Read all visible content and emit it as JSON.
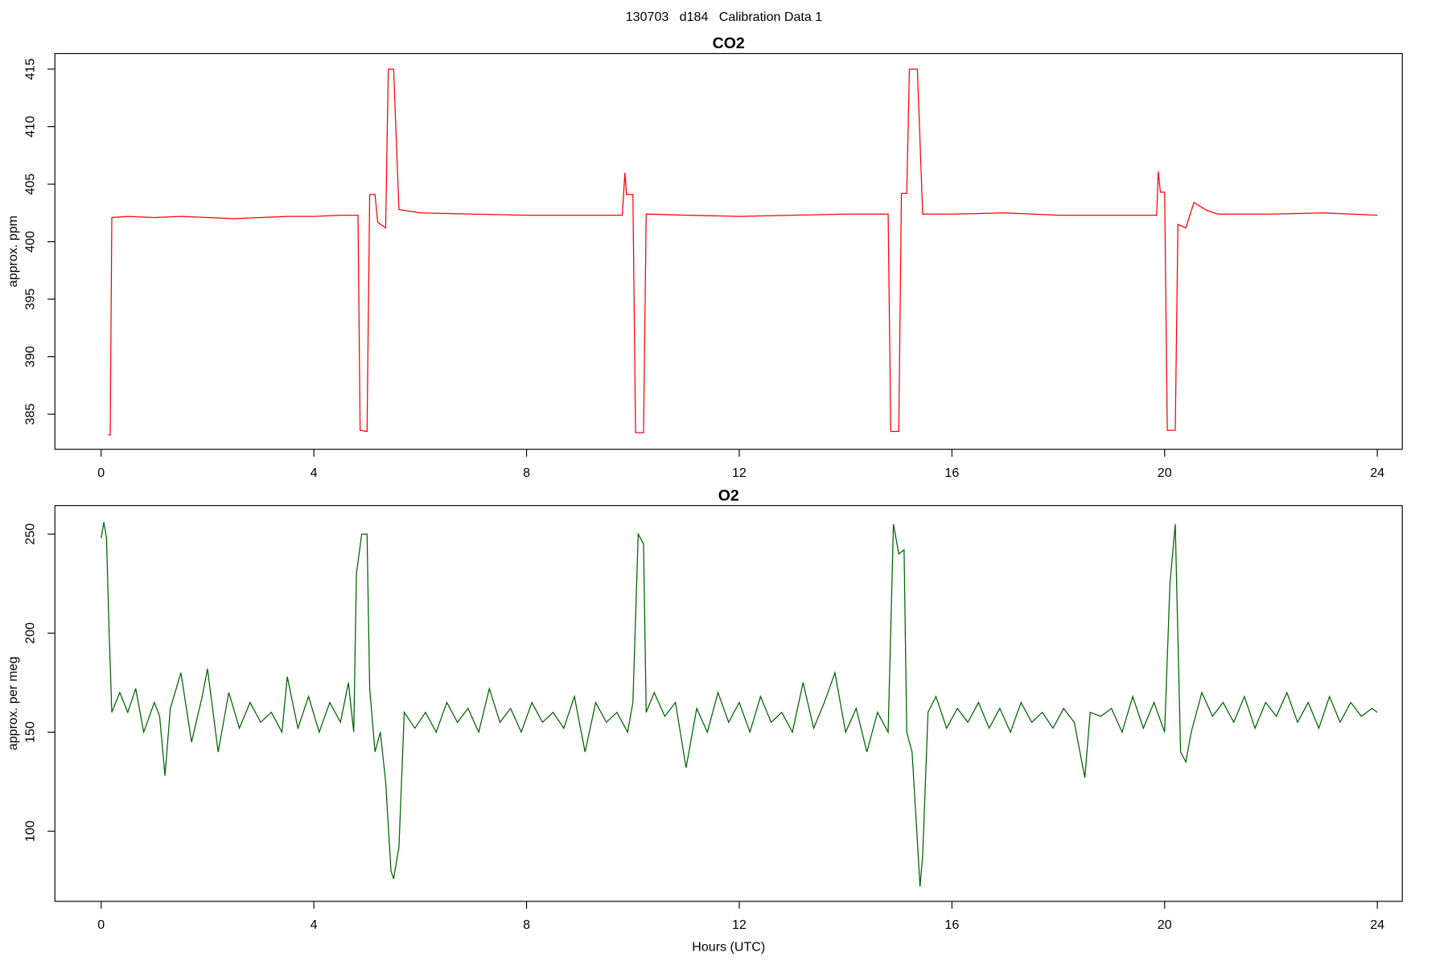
{
  "title": "130703   d184   Calibration Data 1",
  "chart_data": [
    {
      "type": "line",
      "title": "CO2",
      "ylabel": "approx. ppm",
      "color": "#ff0000",
      "xlim": [
        -0.87,
        24.47
      ],
      "xticks": [
        0,
        4,
        8,
        12,
        16,
        20,
        24
      ],
      "ylim": [
        381.95,
        416.36
      ],
      "yticks": [
        385,
        390,
        395,
        400,
        405,
        410,
        415
      ],
      "x": [
        0.13,
        0.17,
        0.2,
        0.5,
        1,
        1.5,
        2,
        2.5,
        3,
        3.5,
        4,
        4.5,
        4.83,
        4.87,
        5.0,
        5.05,
        5.15,
        5.2,
        5.35,
        5.4,
        5.5,
        5.6,
        6,
        7,
        8,
        9,
        9.8,
        9.85,
        9.88,
        10.0,
        10.05,
        10.2,
        10.25,
        11,
        12,
        13,
        14,
        14.8,
        14.85,
        15.0,
        15.05,
        15.15,
        15.2,
        15.35,
        15.45,
        16,
        17,
        18,
        19,
        19.85,
        19.88,
        19.92,
        20.0,
        20.05,
        20.2,
        20.25,
        20.4,
        20.55,
        20.8,
        21,
        22,
        23,
        24
      ],
      "values": [
        383.2,
        383.2,
        402.1,
        402.2,
        402.1,
        402.2,
        402.1,
        402.0,
        402.1,
        402.2,
        402.2,
        402.3,
        402.3,
        383.6,
        383.5,
        404.1,
        404.1,
        401.7,
        401.2,
        415,
        415,
        402.8,
        402.5,
        402.4,
        402.3,
        402.3,
        402.3,
        406,
        404.1,
        404.1,
        383.4,
        383.4,
        402.4,
        402.3,
        402.2,
        402.3,
        402.4,
        402.4,
        383.5,
        383.5,
        404.2,
        404.2,
        415,
        415,
        402.4,
        402.4,
        402.5,
        402.3,
        402.3,
        402.3,
        406.1,
        404.3,
        404.3,
        383.6,
        383.6,
        401.5,
        401.2,
        403.4,
        402.7,
        402.4,
        402.4,
        402.5,
        402.3
      ]
    },
    {
      "type": "line",
      "title": "O2",
      "ylabel": "approx. per meg",
      "xlabel": "Hours (UTC)",
      "color": "#006400",
      "xlim": [
        -0.87,
        24.47
      ],
      "xticks": [
        0,
        4,
        8,
        12,
        16,
        20,
        24
      ],
      "ylim": [
        64.6,
        264.4
      ],
      "yticks": [
        100,
        150,
        200,
        250
      ],
      "x": [
        0,
        0.05,
        0.1,
        0.15,
        0.2,
        0.35,
        0.5,
        0.65,
        0.8,
        1.0,
        1.1,
        1.2,
        1.3,
        1.5,
        1.7,
        1.9,
        2.0,
        2.2,
        2.4,
        2.6,
        2.8,
        3.0,
        3.2,
        3.4,
        3.5,
        3.7,
        3.9,
        4.1,
        4.3,
        4.5,
        4.65,
        4.75,
        4.8,
        4.9,
        5.0,
        5.05,
        5.15,
        5.25,
        5.35,
        5.45,
        5.5,
        5.6,
        5.7,
        5.9,
        6.1,
        6.3,
        6.5,
        6.7,
        6.9,
        7.1,
        7.3,
        7.5,
        7.7,
        7.9,
        8.1,
        8.3,
        8.5,
        8.7,
        8.9,
        9.1,
        9.3,
        9.5,
        9.7,
        9.9,
        10.0,
        10.1,
        10.2,
        10.25,
        10.4,
        10.6,
        10.8,
        11.0,
        11.2,
        11.4,
        11.6,
        11.8,
        12.0,
        12.2,
        12.4,
        12.6,
        12.8,
        13.0,
        13.2,
        13.4,
        13.6,
        13.8,
        14.0,
        14.2,
        14.4,
        14.6,
        14.8,
        14.9,
        15.0,
        15.1,
        15.15,
        15.25,
        15.35,
        15.4,
        15.45,
        15.55,
        15.7,
        15.9,
        16.1,
        16.3,
        16.5,
        16.7,
        16.9,
        17.1,
        17.3,
        17.5,
        17.7,
        17.9,
        18.1,
        18.3,
        18.5,
        18.6,
        18.8,
        19.0,
        19.2,
        19.4,
        19.6,
        19.8,
        20.0,
        20.1,
        20.2,
        20.3,
        20.4,
        20.5,
        20.7,
        20.9,
        21.1,
        21.3,
        21.5,
        21.7,
        21.9,
        22.1,
        22.3,
        22.5,
        22.7,
        22.9,
        23.1,
        23.3,
        23.5,
        23.7,
        23.9,
        24.0
      ],
      "values": [
        248,
        256,
        248,
        200,
        160,
        170,
        160,
        172,
        150,
        165,
        158,
        128,
        162,
        180,
        145,
        168,
        182,
        140,
        170,
        152,
        165,
        155,
        160,
        150,
        178,
        152,
        168,
        150,
        165,
        155,
        175,
        150,
        230,
        250,
        250,
        172,
        140,
        150,
        125,
        80,
        76,
        92,
        160,
        152,
        160,
        150,
        165,
        155,
        162,
        150,
        172,
        155,
        162,
        150,
        165,
        155,
        160,
        152,
        168,
        140,
        165,
        155,
        160,
        150,
        165,
        250,
        245,
        160,
        170,
        158,
        165,
        132,
        162,
        150,
        170,
        155,
        165,
        150,
        168,
        155,
        160,
        150,
        175,
        152,
        165,
        180,
        150,
        162,
        140,
        160,
        150,
        255,
        240,
        242,
        150,
        140,
        95,
        72,
        88,
        160,
        168,
        152,
        162,
        155,
        165,
        152,
        162,
        150,
        165,
        155,
        160,
        152,
        162,
        155,
        127,
        160,
        158,
        162,
        150,
        168,
        152,
        165,
        150,
        225,
        255,
        140,
        135,
        150,
        170,
        158,
        165,
        155,
        168,
        152,
        165,
        158,
        170,
        155,
        165,
        152,
        168,
        155,
        165,
        158,
        162,
        160
      ]
    }
  ]
}
